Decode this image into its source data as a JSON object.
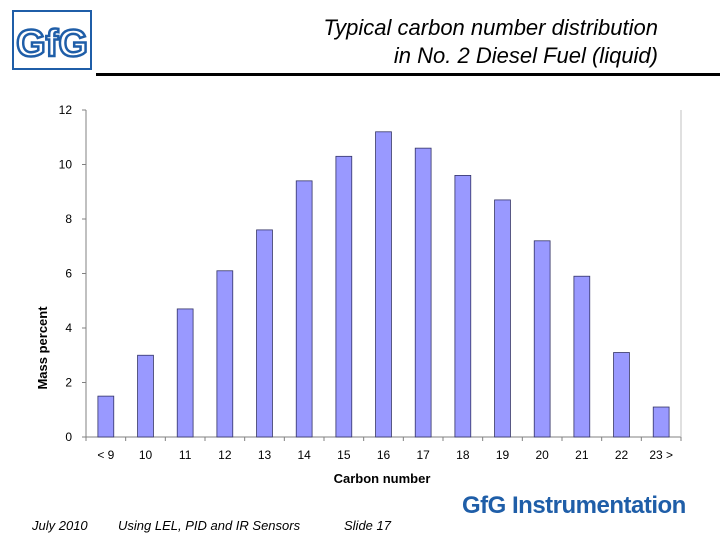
{
  "header": {
    "title_line1": "Typical carbon number distribution",
    "title_line2": "in No. 2 Diesel Fuel (liquid)",
    "logo_text": "GfG"
  },
  "footer": {
    "date": "July 2010",
    "course": "Using LEL, PID and IR Sensors",
    "slide": "Slide 17",
    "brand": "GfG Instrumentation"
  },
  "colors": {
    "bar_fill": "#9999ff",
    "bar_stroke": "#333366",
    "brand": "#1f5ea8",
    "logo": "#1f5ea8"
  },
  "chart_data": {
    "type": "bar",
    "title": "",
    "xlabel": "Carbon number",
    "ylabel": "Mass percent",
    "categories": [
      "< 9",
      "10",
      "11",
      "12",
      "13",
      "14",
      "15",
      "16",
      "17",
      "18",
      "19",
      "20",
      "21",
      "22",
      "23 >"
    ],
    "values": [
      1.5,
      3.0,
      4.7,
      6.1,
      7.6,
      9.4,
      10.3,
      11.2,
      10.6,
      9.6,
      8.7,
      7.2,
      5.9,
      3.1,
      1.1
    ],
    "ylim": [
      0,
      12
    ],
    "yticks": [
      0,
      2,
      4,
      6,
      8,
      10,
      12
    ],
    "grid": false,
    "legend": "none"
  }
}
